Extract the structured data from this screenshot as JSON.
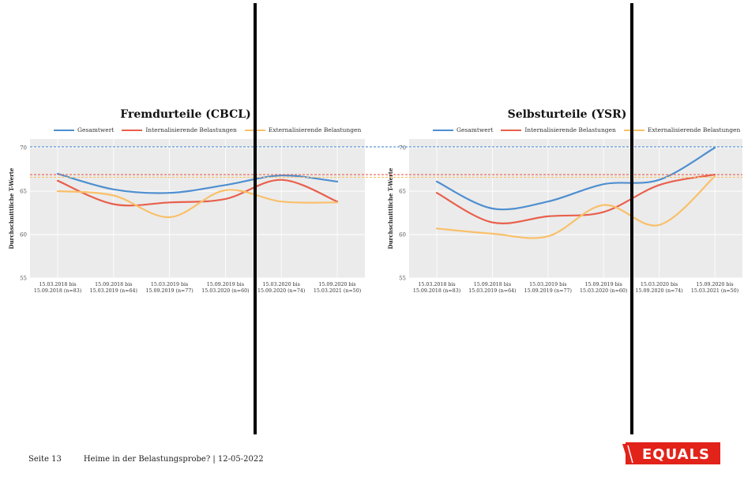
{
  "chart_data": [
    {
      "type": "line",
      "title": "Fremdurteile (CBCL)",
      "ylabel": "Durchschnittliche T-Werte",
      "ylim": [
        55,
        71
      ],
      "yticks": [
        55,
        60,
        65,
        70
      ],
      "grid": true,
      "legend_position": "top",
      "categories": [
        "15.03.2018 bis\n15.09.2018 (n=83)",
        "15.09.2018 bis\n15.03.2019 (n=64)",
        "15.03.2019 bis\n15.09.2019 (n=77)",
        "15.09.2019 bis\n15.03.2020 (n=60)",
        "15.03.2020 bis\n15.09.2020 (n=74)",
        "15.09.2020 bis\n15.03.2021 (n=50)"
      ],
      "series": [
        {
          "name": "Gesamtwert",
          "color": "#4f8fd0",
          "values": [
            67.0,
            65.2,
            64.8,
            65.7,
            66.8,
            66.1
          ]
        },
        {
          "name": "Internalisierende Belastungen",
          "color": "#e8604c",
          "values": [
            66.2,
            63.5,
            63.7,
            64.1,
            66.3,
            63.8
          ]
        },
        {
          "name": "Externalisierende Belastungen",
          "color": "#f9c06a",
          "values": [
            65.0,
            64.5,
            62.0,
            65.1,
            63.8,
            63.7
          ]
        }
      ],
      "reference_lines": [
        {
          "value": 70.1,
          "color": "#4f8fd0"
        },
        {
          "value": 66.9,
          "color": "#e8604c"
        },
        {
          "value": 66.6,
          "color": "#f9c06a"
        }
      ]
    },
    {
      "type": "line",
      "title": "Selbsturteile (YSR)",
      "ylabel": "Durchschnittliche T-Werte",
      "ylim": [
        55,
        71
      ],
      "yticks": [
        55,
        60,
        65,
        70
      ],
      "grid": true,
      "legend_position": "top",
      "categories": [
        "15.03.2018 bis\n15.09.2018 (n=83)",
        "15.09.2018 bis\n15.03.2019 (n=64)",
        "15.03.2019 bis\n15.09.2019 (n=77)",
        "15.09.2019 bis\n15.03.2020 (n=60)",
        "15.03.2020 bis\n15.09.2020 (n=74)",
        "15.09.2020 bis\n15.03.2021 (n=50)"
      ],
      "series": [
        {
          "name": "Gesamtwert",
          "color": "#4f8fd0",
          "values": [
            66.1,
            63.0,
            63.8,
            65.8,
            66.3,
            70.0
          ]
        },
        {
          "name": "Internalisierende Belastungen",
          "color": "#e8604c",
          "values": [
            64.8,
            61.4,
            62.1,
            62.6,
            65.7,
            66.9
          ]
        },
        {
          "name": "Externalisierende Belastungen",
          "color": "#f9c06a",
          "values": [
            60.7,
            60.1,
            59.8,
            63.4,
            61.1,
            66.7
          ]
        }
      ],
      "reference_lines": [
        {
          "value": 70.1,
          "color": "#4f8fd0"
        },
        {
          "value": 66.9,
          "color": "#e8604c"
        },
        {
          "value": 66.6,
          "color": "#f9c06a"
        }
      ]
    }
  ],
  "footer": {
    "page_label": "Seite 13",
    "doc_title": "Heime in der Belastungsprobe? | 12-05-2022"
  },
  "logo": {
    "text": "EQUALS",
    "color": "#e2231a"
  }
}
